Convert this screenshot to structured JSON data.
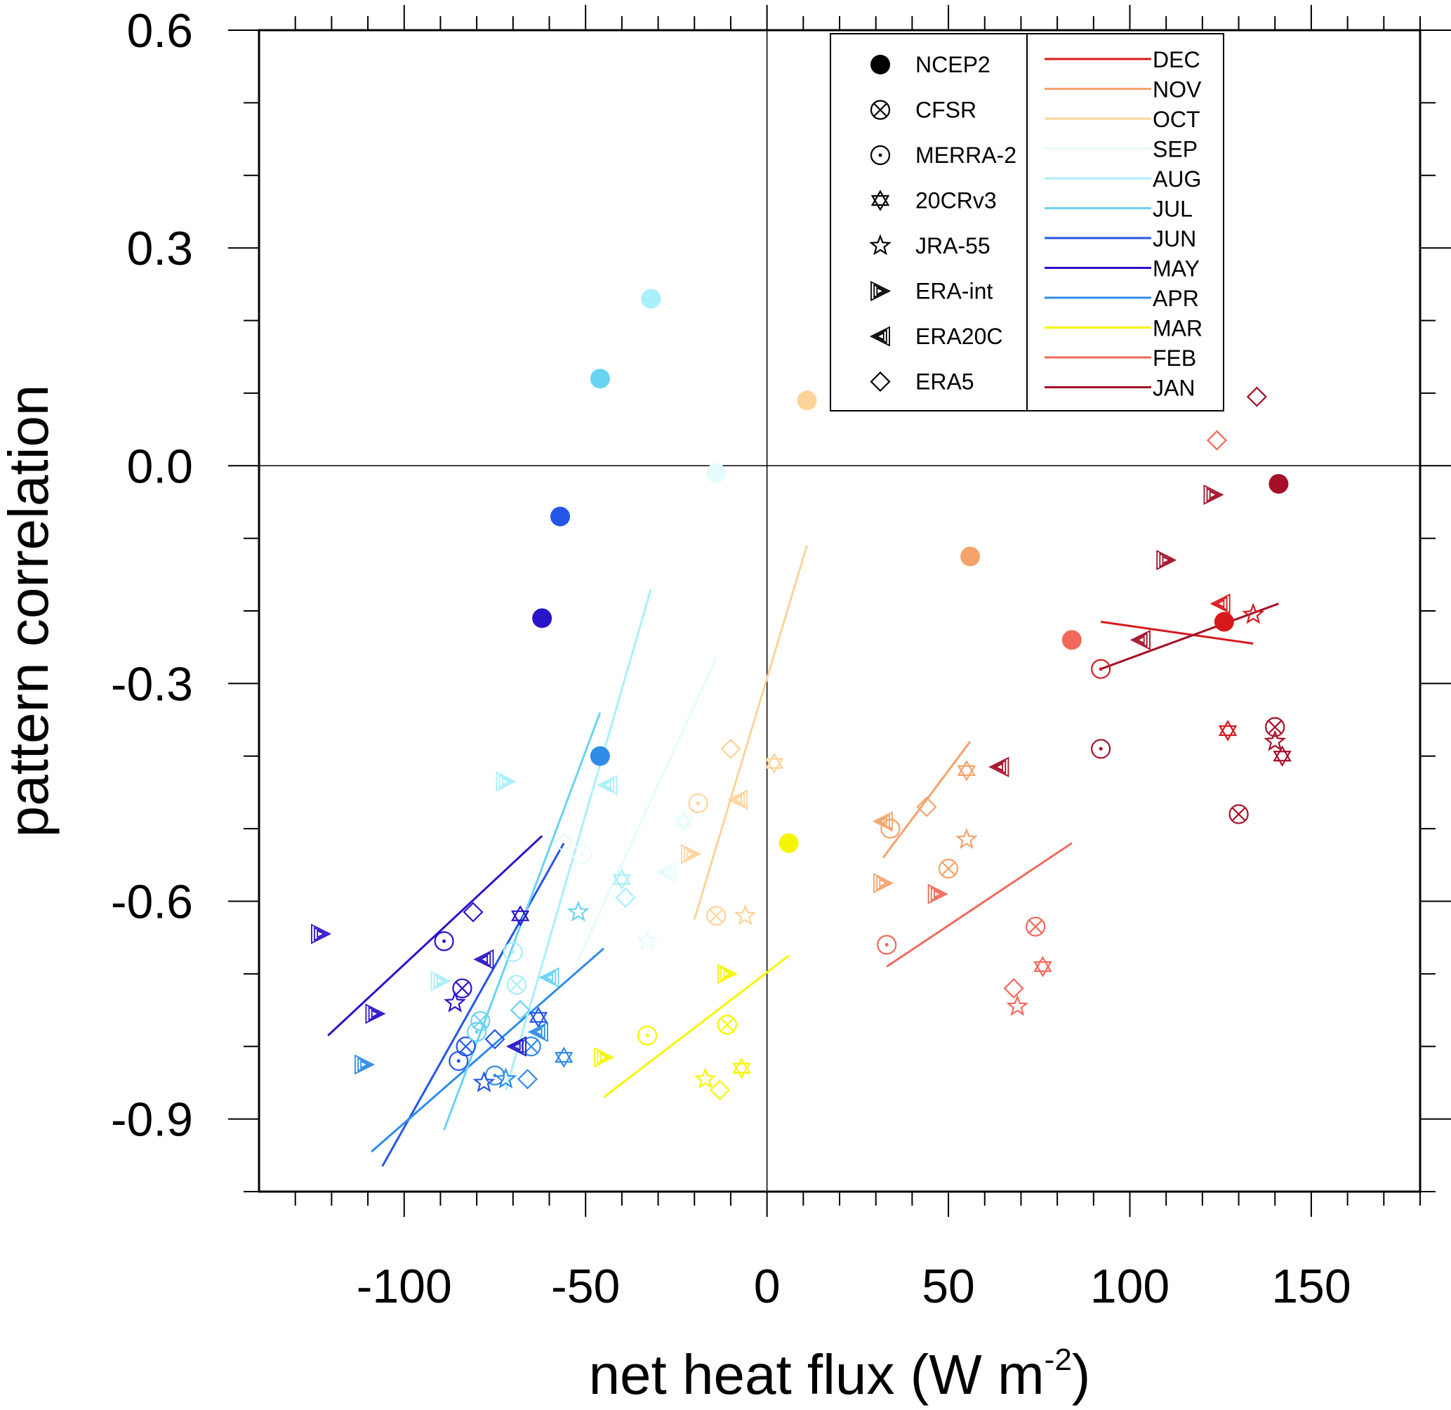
{
  "chart_data": {
    "type": "scatter",
    "xlabel": "net heat flux (W m",
    "xlabel_sup": "-2",
    "xlabel_close": ")",
    "ylabel": "pattern correlation",
    "xlim": [
      -140,
      180
    ],
    "ylim": [
      -1.0,
      0.6
    ],
    "xticks": [
      {
        "v": -100,
        "label": "-100"
      },
      {
        "v": -50,
        "label": "-50"
      },
      {
        "v": 0,
        "label": "0"
      },
      {
        "v": 50,
        "label": "50"
      },
      {
        "v": 100,
        "label": "100"
      },
      {
        "v": 150,
        "label": "150"
      }
    ],
    "yticks": [
      {
        "v": 0.6,
        "label": "0.6"
      },
      {
        "v": 0.3,
        "label": "0.3"
      },
      {
        "v": 0.0,
        "label": "0.0"
      },
      {
        "v": -0.3,
        "label": "-0.3"
      },
      {
        "v": -0.6,
        "label": "-0.6"
      },
      {
        "v": -0.9,
        "label": "-0.9"
      }
    ],
    "zero_lines": true,
    "legend_datasets": [
      "NCEP2",
      "CFSR",
      "MERRA-2",
      "20CRv3",
      "JRA-55",
      "ERA-int",
      "ERA20C",
      "ERA5"
    ],
    "legend_datasets_markers": [
      "filled-circle",
      "circle-x",
      "circle-dot",
      "hexagram",
      "star",
      "triangle-right",
      "triangle-left",
      "diamond"
    ],
    "months": [
      {
        "name": "DEC",
        "color": "#d7191c"
      },
      {
        "name": "NOV",
        "color": "#f4a36c"
      },
      {
        "name": "OCT",
        "color": "#fdd39a"
      },
      {
        "name": "SEP",
        "color": "#e6fbfb"
      },
      {
        "name": "AUG",
        "color": "#a8f0fa"
      },
      {
        "name": "JUL",
        "color": "#69d3f2"
      },
      {
        "name": "JUN",
        "color": "#2456e8"
      },
      {
        "name": "MAY",
        "color": "#2a14c8"
      },
      {
        "name": "APR",
        "color": "#2f8ce6"
      },
      {
        "name": "MAR",
        "color": "#f6f600"
      },
      {
        "name": "FEB",
        "color": "#f2685a"
      },
      {
        "name": "JAN",
        "color": "#a50f27"
      }
    ],
    "points": [
      {
        "x": -32,
        "y": 0.23,
        "ds": "NCEP2",
        "m": "AUG"
      },
      {
        "x": -46,
        "y": 0.12,
        "ds": "NCEP2",
        "m": "JUL"
      },
      {
        "x": 11,
        "y": 0.09,
        "ds": "NCEP2",
        "m": "OCT"
      },
      {
        "x": -14,
        "y": -0.01,
        "ds": "NCEP2",
        "m": "SEP"
      },
      {
        "x": -57,
        "y": -0.07,
        "ds": "NCEP2",
        "m": "JUN"
      },
      {
        "x": -62,
        "y": -0.21,
        "ds": "NCEP2",
        "m": "MAY"
      },
      {
        "x": -46,
        "y": -0.4,
        "ds": "NCEP2",
        "m": "APR"
      },
      {
        "x": 6,
        "y": -0.52,
        "ds": "NCEP2",
        "m": "MAR"
      },
      {
        "x": 56,
        "y": -0.125,
        "ds": "NCEP2",
        "m": "NOV"
      },
      {
        "x": 84,
        "y": -0.24,
        "ds": "NCEP2",
        "m": "FEB"
      },
      {
        "x": 126,
        "y": -0.215,
        "ds": "NCEP2",
        "m": "DEC"
      },
      {
        "x": 141,
        "y": -0.025,
        "ds": "NCEP2",
        "m": "JAN"
      },
      {
        "x": 140,
        "y": -0.36,
        "ds": "CFSR",
        "m": "JAN"
      },
      {
        "x": 130,
        "y": -0.48,
        "ds": "CFSR",
        "m": "JAN"
      },
      {
        "x": 74,
        "y": -0.635,
        "ds": "CFSR",
        "m": "FEB"
      },
      {
        "x": 50,
        "y": -0.555,
        "ds": "CFSR",
        "m": "NOV"
      },
      {
        "x": -14,
        "y": -0.62,
        "ds": "CFSR",
        "m": "OCT"
      },
      {
        "x": -11,
        "y": -0.77,
        "ds": "CFSR",
        "m": "MAR"
      },
      {
        "x": -84,
        "y": -0.72,
        "ds": "CFSR",
        "m": "MAY"
      },
      {
        "x": -83,
        "y": -0.8,
        "ds": "CFSR",
        "m": "JUN"
      },
      {
        "x": -79,
        "y": -0.765,
        "ds": "CFSR",
        "m": "JUL"
      },
      {
        "x": -69,
        "y": -0.715,
        "ds": "CFSR",
        "m": "AUG"
      },
      {
        "x": -65,
        "y": -0.8,
        "ds": "CFSR",
        "m": "APR"
      },
      {
        "x": 92,
        "y": -0.28,
        "ds": "MERRA-2",
        "m": "DEC"
      },
      {
        "x": 92,
        "y": -0.39,
        "ds": "MERRA-2",
        "m": "JAN"
      },
      {
        "x": 34,
        "y": -0.5,
        "ds": "MERRA-2",
        "m": "NOV"
      },
      {
        "x": 33,
        "y": -0.66,
        "ds": "MERRA-2",
        "m": "FEB"
      },
      {
        "x": -19,
        "y": -0.465,
        "ds": "MERRA-2",
        "m": "OCT"
      },
      {
        "x": -33,
        "y": -0.785,
        "ds": "MERRA-2",
        "m": "MAR"
      },
      {
        "x": -89,
        "y": -0.655,
        "ds": "MERRA-2",
        "m": "MAY"
      },
      {
        "x": -85,
        "y": -0.82,
        "ds": "MERRA-2",
        "m": "JUN"
      },
      {
        "x": -75,
        "y": -0.84,
        "ds": "MERRA-2",
        "m": "APR"
      },
      {
        "x": -51,
        "y": -0.535,
        "ds": "MERRA-2",
        "m": "SEP"
      },
      {
        "x": -70,
        "y": -0.67,
        "ds": "MERRA-2",
        "m": "AUG"
      },
      {
        "x": -80,
        "y": -0.78,
        "ds": "MERRA-2",
        "m": "JUL"
      },
      {
        "x": 142,
        "y": -0.4,
        "ds": "20CRv3",
        "m": "JAN"
      },
      {
        "x": 127,
        "y": -0.365,
        "ds": "20CRv3",
        "m": "DEC"
      },
      {
        "x": 76,
        "y": -0.69,
        "ds": "20CRv3",
        "m": "FEB"
      },
      {
        "x": 55,
        "y": -0.42,
        "ds": "20CRv3",
        "m": "NOV"
      },
      {
        "x": 2,
        "y": -0.41,
        "ds": "20CRv3",
        "m": "OCT"
      },
      {
        "x": -7,
        "y": -0.83,
        "ds": "20CRv3",
        "m": "MAR"
      },
      {
        "x": -68,
        "y": -0.62,
        "ds": "20CRv3",
        "m": "MAY"
      },
      {
        "x": -63,
        "y": -0.76,
        "ds": "20CRv3",
        "m": "JUN"
      },
      {
        "x": -56,
        "y": -0.815,
        "ds": "20CRv3",
        "m": "APR"
      },
      {
        "x": -40,
        "y": -0.57,
        "ds": "20CRv3",
        "m": "AUG"
      },
      {
        "x": -23,
        "y": -0.49,
        "ds": "20CRv3",
        "m": "SEP"
      },
      {
        "x": 134,
        "y": -0.205,
        "ds": "JRA-55",
        "m": "DEC"
      },
      {
        "x": 140,
        "y": -0.38,
        "ds": "JRA-55",
        "m": "JAN"
      },
      {
        "x": 69,
        "y": -0.745,
        "ds": "JRA-55",
        "m": "FEB"
      },
      {
        "x": 55,
        "y": -0.515,
        "ds": "JRA-55",
        "m": "NOV"
      },
      {
        "x": -6,
        "y": -0.62,
        "ds": "JRA-55",
        "m": "OCT"
      },
      {
        "x": -17,
        "y": -0.845,
        "ds": "JRA-55",
        "m": "MAR"
      },
      {
        "x": -86,
        "y": -0.74,
        "ds": "JRA-55",
        "m": "MAY"
      },
      {
        "x": -78,
        "y": -0.85,
        "ds": "JRA-55",
        "m": "JUN"
      },
      {
        "x": -72,
        "y": -0.845,
        "ds": "JRA-55",
        "m": "APR"
      },
      {
        "x": -52,
        "y": -0.615,
        "ds": "JRA-55",
        "m": "JUL"
      },
      {
        "x": -33,
        "y": -0.655,
        "ds": "JRA-55",
        "m": "SEP"
      },
      {
        "x": 123,
        "y": -0.04,
        "ds": "ERA-int",
        "m": "JAN"
      },
      {
        "x": 110,
        "y": -0.13,
        "ds": "ERA-int",
        "m": "JAN"
      },
      {
        "x": 47,
        "y": -0.59,
        "ds": "ERA-int",
        "m": "FEB"
      },
      {
        "x": 32,
        "y": -0.575,
        "ds": "ERA-int",
        "m": "NOV"
      },
      {
        "x": -21,
        "y": -0.535,
        "ds": "ERA-int",
        "m": "OCT"
      },
      {
        "x": -45,
        "y": -0.815,
        "ds": "ERA-int",
        "m": "MAR"
      },
      {
        "x": -11,
        "y": -0.7,
        "ds": "ERA-int",
        "m": "MAR"
      },
      {
        "x": -123,
        "y": -0.645,
        "ds": "ERA-int",
        "m": "MAY"
      },
      {
        "x": -108,
        "y": -0.755,
        "ds": "ERA-int",
        "m": "MAY"
      },
      {
        "x": -111,
        "y": -0.825,
        "ds": "ERA-int",
        "m": "APR"
      },
      {
        "x": -72,
        "y": -0.435,
        "ds": "ERA-int",
        "m": "AUG"
      },
      {
        "x": -90,
        "y": -0.71,
        "ds": "ERA-int",
        "m": "AUG"
      },
      {
        "x": 125,
        "y": -0.19,
        "ds": "ERA20C",
        "m": "DEC"
      },
      {
        "x": 103,
        "y": -0.24,
        "ds": "ERA20C",
        "m": "JAN"
      },
      {
        "x": 64,
        "y": -0.415,
        "ds": "ERA20C",
        "m": "JAN"
      },
      {
        "x": 32,
        "y": -0.49,
        "ds": "ERA20C",
        "m": "NOV"
      },
      {
        "x": -8,
        "y": -0.46,
        "ds": "ERA20C",
        "m": "OCT"
      },
      {
        "x": -44,
        "y": -0.44,
        "ds": "ERA20C",
        "m": "AUG"
      },
      {
        "x": -28,
        "y": -0.56,
        "ds": "ERA20C",
        "m": "SEP"
      },
      {
        "x": -78,
        "y": -0.68,
        "ds": "ERA20C",
        "m": "MAY"
      },
      {
        "x": -69,
        "y": -0.8,
        "ds": "ERA20C",
        "m": "MAY"
      },
      {
        "x": -60,
        "y": -0.705,
        "ds": "ERA20C",
        "m": "JUL"
      },
      {
        "x": -63,
        "y": -0.78,
        "ds": "ERA20C",
        "m": "APR"
      },
      {
        "x": 135,
        "y": 0.095,
        "ds": "ERA5",
        "m": "JAN"
      },
      {
        "x": 124,
        "y": 0.035,
        "ds": "ERA5",
        "m": "FEB"
      },
      {
        "x": 44,
        "y": -0.47,
        "ds": "ERA5",
        "m": "NOV"
      },
      {
        "x": 68,
        "y": -0.72,
        "ds": "ERA5",
        "m": "FEB"
      },
      {
        "x": -10,
        "y": -0.39,
        "ds": "ERA5",
        "m": "OCT"
      },
      {
        "x": -13,
        "y": -0.86,
        "ds": "ERA5",
        "m": "MAR"
      },
      {
        "x": -81,
        "y": -0.615,
        "ds": "ERA5",
        "m": "MAY"
      },
      {
        "x": -75,
        "y": -0.79,
        "ds": "ERA5",
        "m": "JUN"
      },
      {
        "x": -66,
        "y": -0.845,
        "ds": "ERA5",
        "m": "APR"
      },
      {
        "x": -68,
        "y": -0.75,
        "ds": "ERA5",
        "m": "JUL"
      },
      {
        "x": -39,
        "y": -0.595,
        "ds": "ERA5",
        "m": "AUG"
      },
      {
        "x": -56,
        "y": -0.52,
        "ds": "ERA5",
        "m": "SEP"
      }
    ],
    "regression_lines": [
      {
        "m": "MAY",
        "x1": -121,
        "y1": -0.785,
        "x2": -62,
        "y2": -0.51
      },
      {
        "m": "JUN",
        "x1": -106,
        "y1": -0.965,
        "x2": -56,
        "y2": -0.52
      },
      {
        "m": "APR",
        "x1": -109,
        "y1": -0.945,
        "x2": -45,
        "y2": -0.665
      },
      {
        "x1": -89,
        "y1": -0.915,
        "x2": -46,
        "y2": -0.34,
        "m": "JUL"
      },
      {
        "m": "AUG",
        "x1": -72,
        "y1": -0.86,
        "x2": -32,
        "y2": -0.17
      },
      {
        "m": "SEP",
        "x1": -52,
        "y1": -0.68,
        "x2": -14,
        "y2": -0.265
      },
      {
        "m": "OCT",
        "x1": -20,
        "y1": -0.625,
        "x2": 11,
        "y2": -0.11
      },
      {
        "m": "MAR",
        "x1": -45,
        "y1": -0.87,
        "x2": 6,
        "y2": -0.675
      },
      {
        "m": "NOV",
        "x1": 32,
        "y1": -0.54,
        "x2": 56,
        "y2": -0.38
      },
      {
        "m": "FEB",
        "x1": 33,
        "y1": -0.69,
        "x2": 84,
        "y2": -0.52
      },
      {
        "m": "DEC",
        "x1": 92,
        "y1": -0.215,
        "x2": 134,
        "y2": -0.245
      },
      {
        "m": "JAN",
        "x1": 92,
        "y1": -0.28,
        "x2": 141,
        "y2": -0.19
      }
    ]
  }
}
